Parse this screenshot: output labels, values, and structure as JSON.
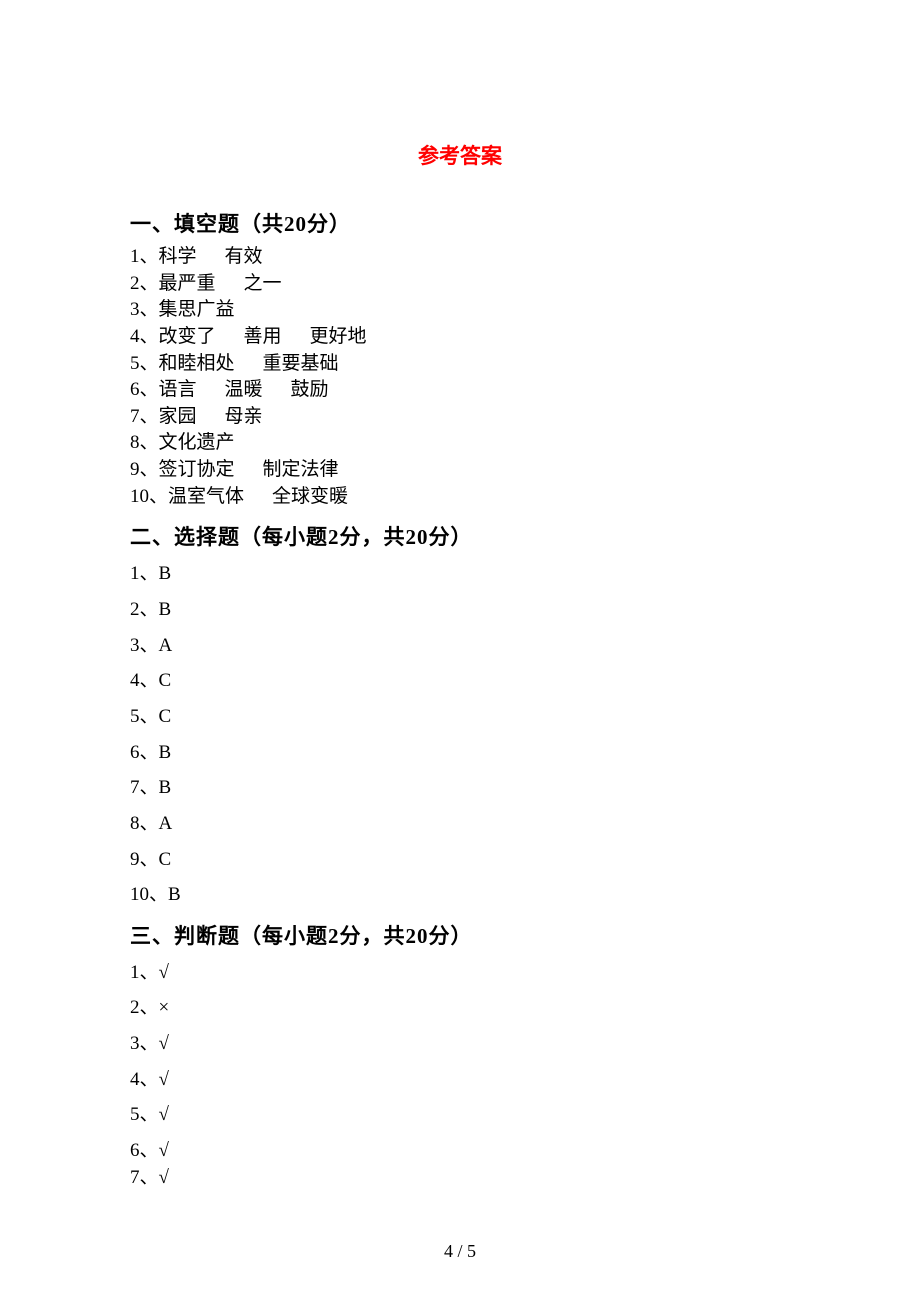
{
  "title": "参考答案",
  "title_color": "#ff0000",
  "text_color": "#000000",
  "background_color": "#ffffff",
  "page_number": "4 / 5",
  "sections": {
    "fill": {
      "header": "一、填空题（共20分）",
      "items": [
        {
          "num": "1、",
          "parts": [
            "科学",
            "有效"
          ]
        },
        {
          "num": "2、",
          "parts": [
            "最严重",
            "之一"
          ]
        },
        {
          "num": "3、",
          "parts": [
            "集思广益"
          ]
        },
        {
          "num": "4、",
          "parts": [
            "改变了",
            "善用",
            "更好地"
          ]
        },
        {
          "num": "5、",
          "parts": [
            "和睦相处",
            "重要基础"
          ]
        },
        {
          "num": "6、",
          "parts": [
            "语言",
            "温暖",
            "鼓励"
          ]
        },
        {
          "num": "7、",
          "parts": [
            "家园",
            "母亲"
          ]
        },
        {
          "num": "8、",
          "parts": [
            "文化遗产"
          ]
        },
        {
          "num": "9、",
          "parts": [
            "签订协定",
            "制定法律"
          ]
        },
        {
          "num": "10、",
          "parts": [
            "温室气体",
            "全球变暖"
          ]
        }
      ]
    },
    "choice": {
      "header": "二、选择题（每小题2分，共20分）",
      "items": [
        {
          "num": "1、",
          "ans": "B"
        },
        {
          "num": "2、",
          "ans": "B"
        },
        {
          "num": "3、",
          "ans": "A"
        },
        {
          "num": "4、",
          "ans": "C"
        },
        {
          "num": "5、",
          "ans": "C"
        },
        {
          "num": "6、",
          "ans": "B"
        },
        {
          "num": "7、",
          "ans": "B"
        },
        {
          "num": "8、",
          "ans": "A"
        },
        {
          "num": "9、",
          "ans": "C"
        },
        {
          "num": "10、",
          "ans": "B"
        }
      ]
    },
    "judge": {
      "header": "三、判断题（每小题2分，共20分）",
      "items": [
        {
          "num": "1、",
          "ans": "√"
        },
        {
          "num": "2、",
          "ans": "×"
        },
        {
          "num": "3、",
          "ans": "√"
        },
        {
          "num": "4、",
          "ans": "√"
        },
        {
          "num": "5、",
          "ans": "√"
        },
        {
          "num": "6、",
          "ans": "√"
        },
        {
          "num": "7、",
          "ans": "√"
        }
      ]
    }
  }
}
